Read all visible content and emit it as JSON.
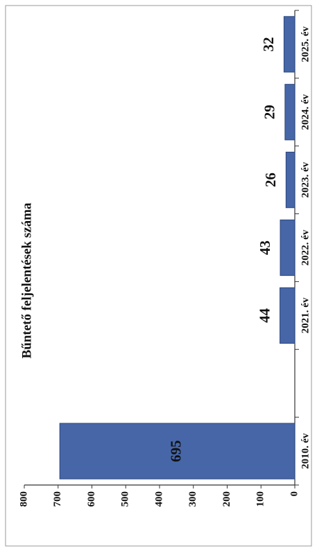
{
  "chart_data": {
    "type": "bar",
    "title": "Bűntető feljelentések száma",
    "categories": [
      "2010. év",
      null,
      "2021. év",
      "2022. év",
      "2023. év",
      "2024. év",
      "2025. év"
    ],
    "values": [
      695,
      null,
      44,
      43,
      26,
      29,
      32
    ],
    "color": "#4666a8",
    "ylim": [
      0,
      800
    ],
    "yticks": [
      0,
      100,
      200,
      300,
      400,
      500,
      600,
      700,
      800
    ],
    "grid": false
  }
}
